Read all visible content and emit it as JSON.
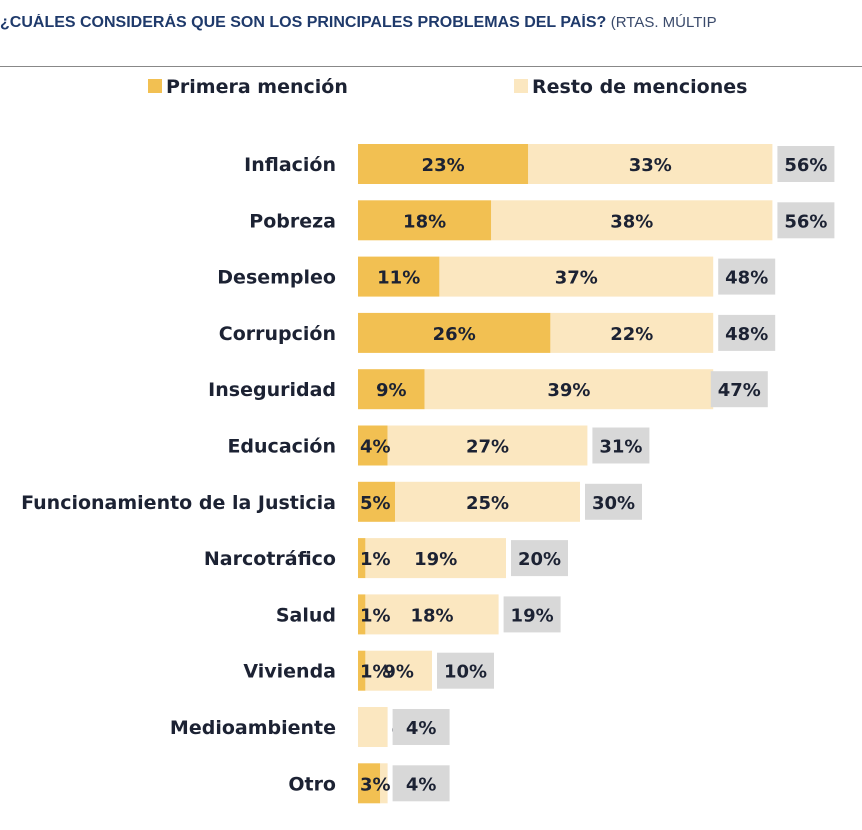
{
  "header": {
    "title": "¿CUÁLES CONSIDERÁS QUE SON LOS PRINCIPALES PROBLEMAS DEL PAÍS?",
    "title_continuation": "(RTAS. MÚLTIP"
  },
  "colors": {
    "primera": "#f2c052",
    "resto": "#fbe7c0",
    "total_bg": "#d8d8d8",
    "text": "#1c2233",
    "title": "#1f3a6b"
  },
  "chart_data": {
    "type": "bar",
    "orientation": "horizontal",
    "stacked": true,
    "legend_position": "top",
    "categories": [
      "Inflación",
      "Pobreza",
      "Desempleo",
      "Corrupción",
      "Inseguridad",
      "Educación",
      "Funcionamiento de la Justicia",
      "Narcotráfico",
      "Salud",
      "Vivienda",
      "Medioambiente",
      "Otro"
    ],
    "series": [
      {
        "name": "Primera mención",
        "values": [
          23,
          18,
          11,
          26,
          9,
          4,
          5,
          1,
          1,
          1,
          0,
          3
        ],
        "labels": [
          "23%",
          "18%",
          "11%",
          "26%",
          "9%",
          "4%",
          "5%",
          "1%",
          "1%",
          "1%",
          "",
          "3%"
        ]
      },
      {
        "name": "Resto de menciones",
        "values": [
          33,
          38,
          37,
          22,
          39,
          27,
          25,
          19,
          18,
          9,
          4,
          1
        ],
        "labels": [
          "33%",
          "38%",
          "37%",
          "22%",
          "39%",
          "27%",
          "25%",
          "19%",
          "18%",
          "9%",
          "4%",
          ""
        ]
      }
    ],
    "totals": [
      56,
      56,
      48,
      48,
      47,
      31,
      30,
      20,
      19,
      10,
      4,
      4
    ],
    "total_labels": [
      "56%",
      "56%",
      "48%",
      "48%",
      "47%",
      "31%",
      "30%",
      "20%",
      "19%",
      "10%",
      "4%",
      "4%"
    ],
    "xlim": [
      0,
      56
    ],
    "grid": false
  }
}
